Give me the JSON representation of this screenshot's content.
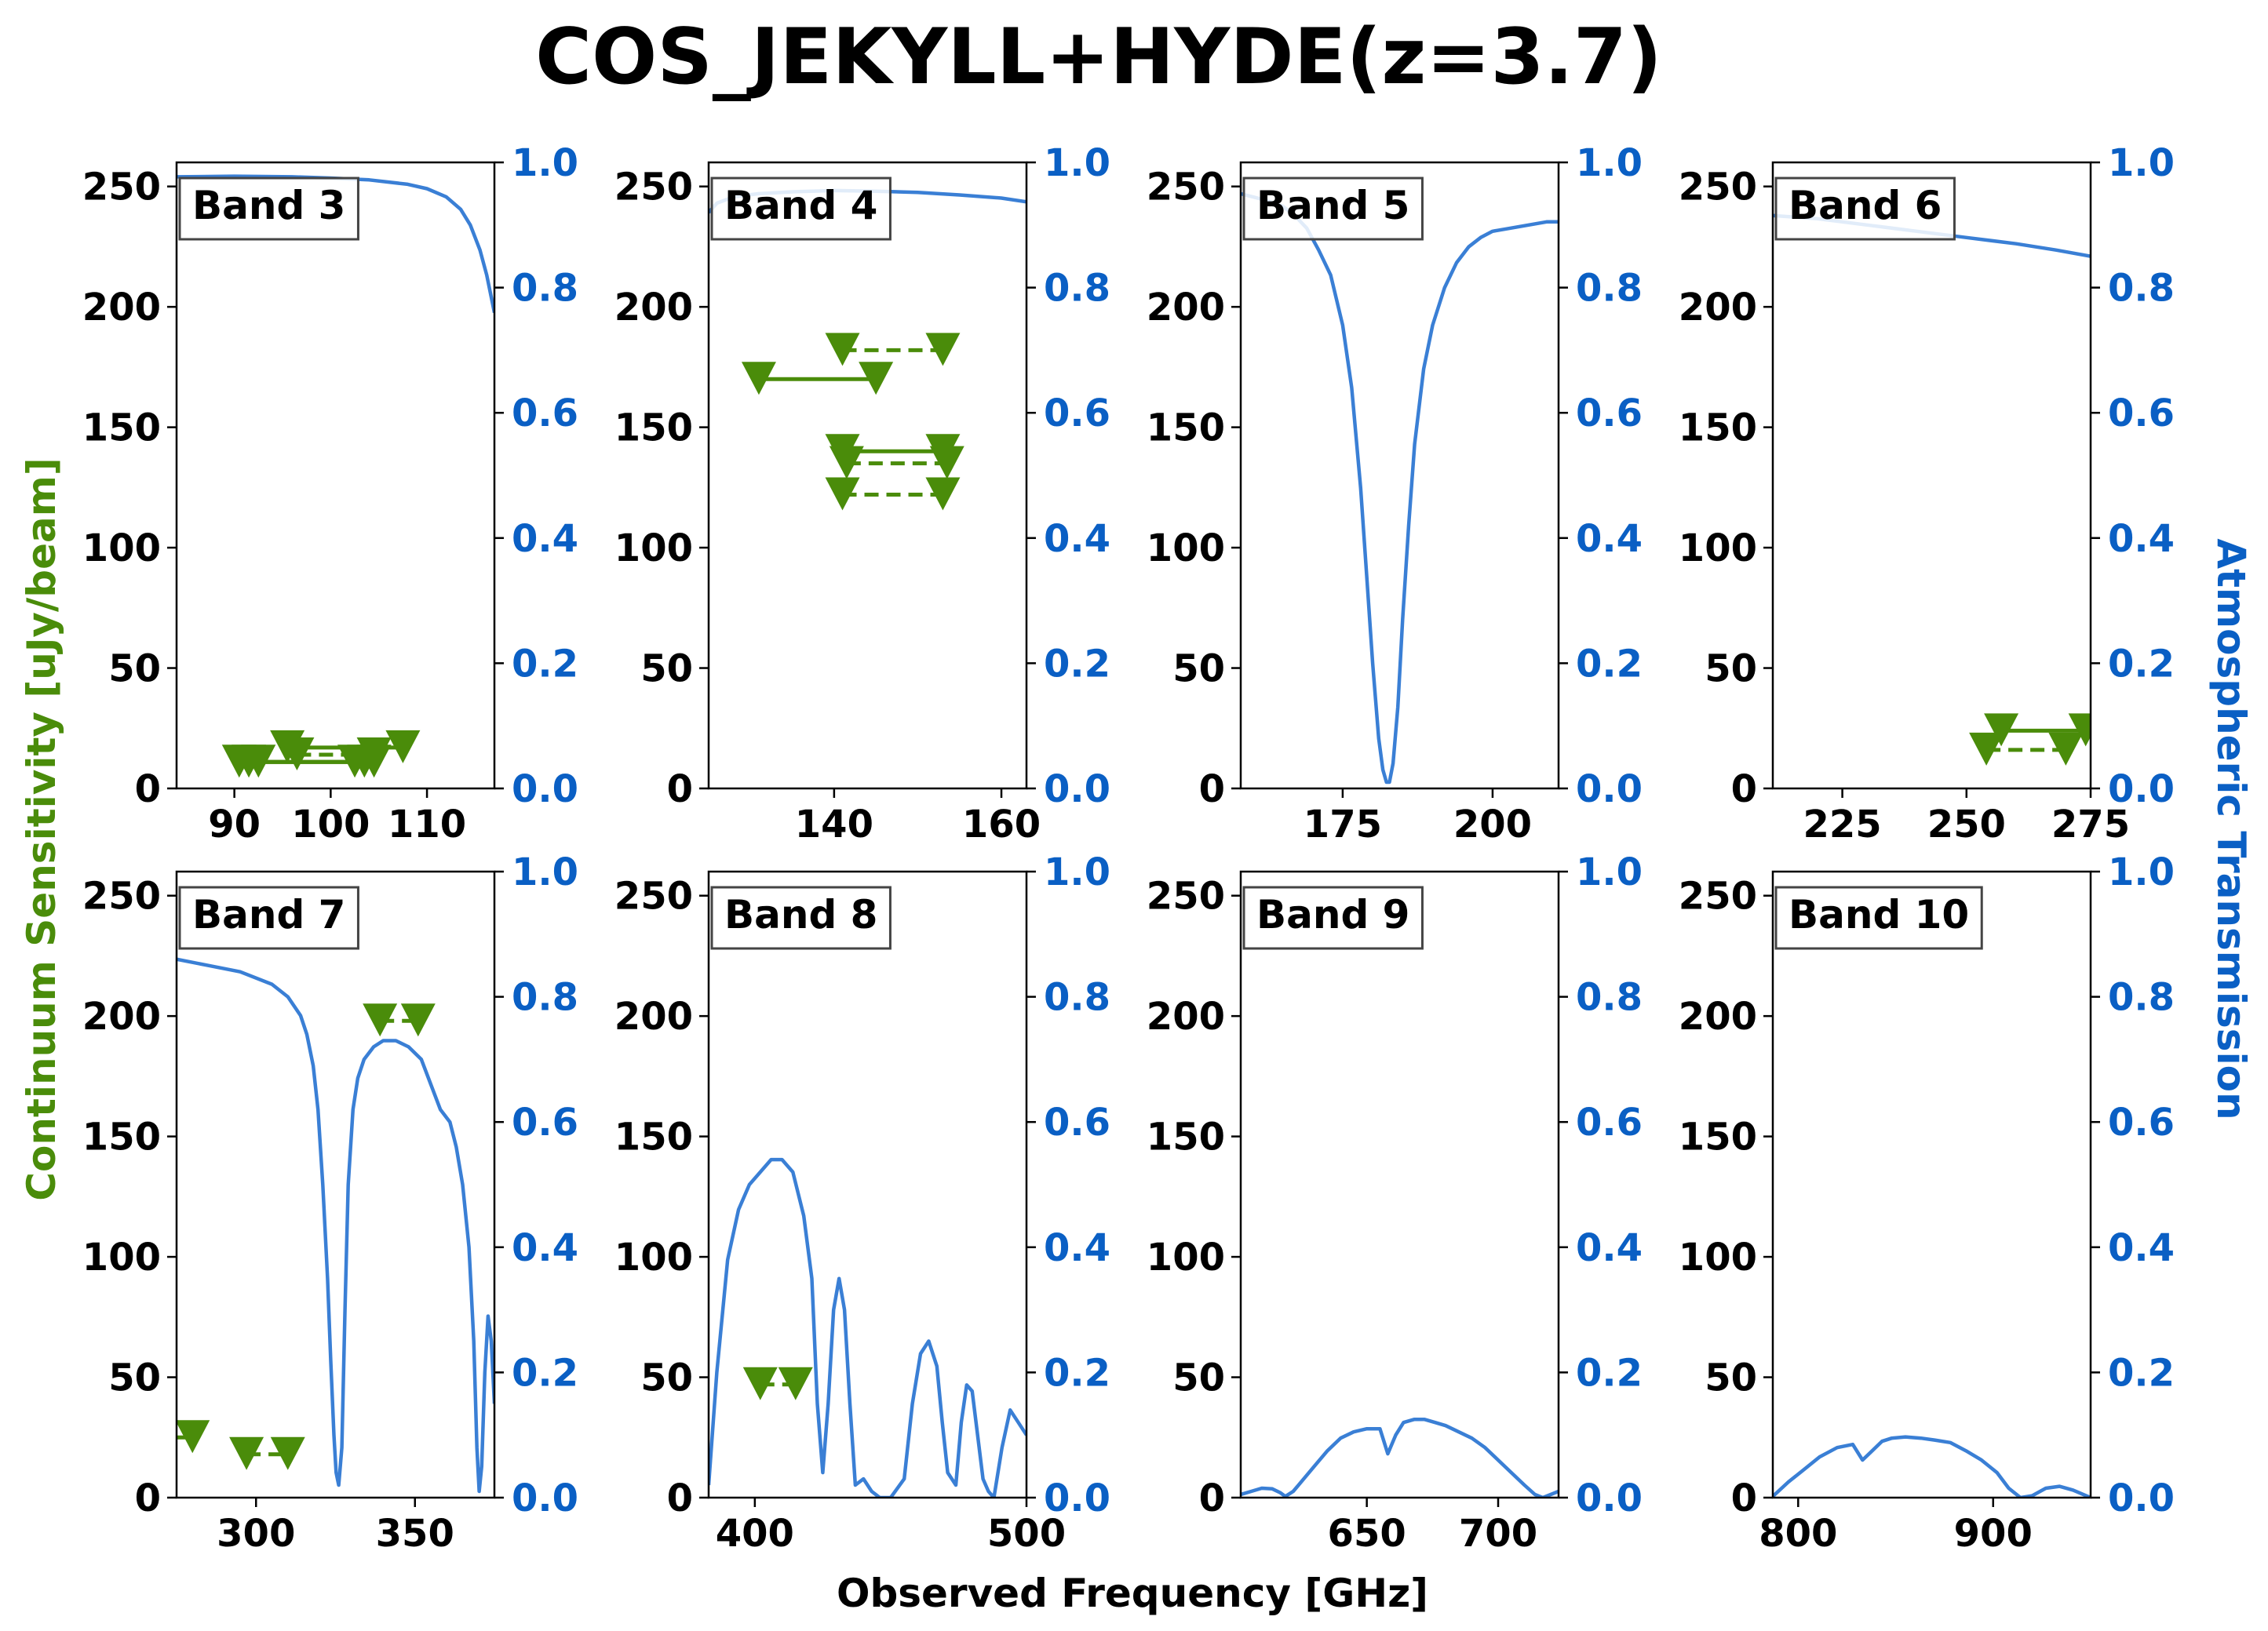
{
  "figure": {
    "title": "COS_JEKYLL+HYDE(z=3.7)",
    "xlabel": "Observed Frequency [GHz]",
    "ylabel_left": "Continuum Sensitivity [uJy/beam]",
    "ylabel_right": "Atmospheric Transmission"
  },
  "colors": {
    "sensitivity": "#4a8c0a",
    "transmission": "#3a7fd5",
    "right_axis": "#0a5fc4"
  },
  "chart_data": [
    {
      "type": "line",
      "band": "Band 3",
      "xlim": [
        84,
        117
      ],
      "ylim": [
        0,
        260
      ],
      "y2lim": [
        0,
        1
      ],
      "xticks": [
        90,
        100,
        110
      ],
      "yticks": [
        0,
        50,
        100,
        150,
        200,
        250
      ],
      "y2ticks": [
        "0.0",
        "0.2",
        "0.4",
        "0.6",
        "0.8",
        "1.0"
      ],
      "sensitivity_limits": [
        {
          "x": [
            90.5,
            102.5
          ],
          "y": [
            11,
            11
          ],
          "style": "solid"
        },
        {
          "x": [
            91.5,
            103.5
          ],
          "y": [
            11,
            11
          ],
          "style": "solid"
        },
        {
          "x": [
            92.5,
            104.5
          ],
          "y": [
            11,
            11
          ],
          "style": "solid"
        },
        {
          "x": [
            95.5,
            107.5
          ],
          "y": [
            17,
            17
          ],
          "style": "solid"
        },
        {
          "x": [
            96.5,
            104.5
          ],
          "y": [
            14,
            14
          ],
          "style": "dashed"
        }
      ],
      "transmission": {
        "x": [
          84,
          90,
          96,
          100,
          104,
          108,
          110,
          112,
          113.5,
          114.5,
          115.5,
          116.2,
          117
        ],
        "y": [
          0.977,
          0.978,
          0.977,
          0.975,
          0.972,
          0.965,
          0.958,
          0.945,
          0.925,
          0.9,
          0.86,
          0.82,
          0.76
        ]
      }
    },
    {
      "type": "line",
      "band": "Band 4",
      "xlim": [
        125,
        163
      ],
      "ylim": [
        0,
        260
      ],
      "y2lim": [
        0,
        1
      ],
      "xticks": [
        140,
        160
      ],
      "yticks": [
        0,
        50,
        100,
        150,
        200,
        250
      ],
      "y2ticks": [
        "0.0",
        "0.2",
        "0.4",
        "0.6",
        "0.8",
        "1.0"
      ],
      "sensitivity_limits": [
        {
          "x": [
            131,
            145
          ],
          "y": [
            170,
            170
          ],
          "style": "solid"
        },
        {
          "x": [
            141,
            153
          ],
          "y": [
            182,
            182
          ],
          "style": "dashed"
        },
        {
          "x": [
            141,
            153
          ],
          "y": [
            140,
            140
          ],
          "style": "solid"
        },
        {
          "x": [
            141.5,
            153.5
          ],
          "y": [
            135,
            135
          ],
          "style": "dashed"
        },
        {
          "x": [
            141,
            153
          ],
          "y": [
            122,
            122
          ],
          "style": "dashed"
        }
      ],
      "transmission": {
        "x": [
          125,
          126,
          128,
          131,
          135,
          140,
          145,
          150,
          155,
          160,
          163
        ],
        "y": [
          0.92,
          0.935,
          0.945,
          0.95,
          0.953,
          0.955,
          0.954,
          0.952,
          0.948,
          0.943,
          0.937
        ]
      }
    },
    {
      "type": "line",
      "band": "Band 5",
      "xlim": [
        158,
        211
      ],
      "ylim": [
        0,
        260
      ],
      "y2lim": [
        0,
        1
      ],
      "xticks": [
        175,
        200
      ],
      "yticks": [
        0,
        50,
        100,
        150,
        200,
        250
      ],
      "y2ticks": [
        "0.0",
        "0.2",
        "0.4",
        "0.6",
        "0.8",
        "1.0"
      ],
      "sensitivity_limits": [],
      "transmission": {
        "x": [
          158,
          162,
          165,
          167,
          169,
          171,
          173,
          175,
          176.5,
          178,
          179,
          180,
          181,
          181.7,
          182.3,
          182.8,
          183.4,
          184.2,
          185,
          186,
          187,
          188.5,
          190,
          192,
          194,
          196,
          198,
          200,
          203,
          206,
          209,
          211
        ],
        "y": [
          0.95,
          0.94,
          0.93,
          0.915,
          0.895,
          0.86,
          0.82,
          0.74,
          0.64,
          0.48,
          0.34,
          0.2,
          0.08,
          0.03,
          0.01,
          0.01,
          0.04,
          0.13,
          0.27,
          0.42,
          0.55,
          0.67,
          0.74,
          0.8,
          0.84,
          0.865,
          0.88,
          0.89,
          0.895,
          0.9,
          0.905,
          0.905
        ]
      }
    },
    {
      "type": "line",
      "band": "Band 6",
      "xlim": [
        211,
        275
      ],
      "ylim": [
        0,
        260
      ],
      "y2lim": [
        0,
        1
      ],
      "xticks": [
        225,
        250,
        275
      ],
      "yticks": [
        0,
        50,
        100,
        150,
        200,
        250
      ],
      "y2ticks": [
        "0.0",
        "0.2",
        "0.4",
        "0.6",
        "0.8",
        "1.0"
      ],
      "sensitivity_limits": [
        {
          "x": [
            257,
            274
          ],
          "y": [
            24,
            24
          ],
          "style": "solid"
        },
        {
          "x": [
            254,
            270
          ],
          "y": [
            16,
            16
          ],
          "style": "dashed"
        }
      ],
      "transmission": {
        "x": [
          211,
          220,
          230,
          240,
          250,
          260,
          268,
          275
        ],
        "y": [
          0.915,
          0.91,
          0.9,
          0.89,
          0.88,
          0.87,
          0.86,
          0.85
        ]
      }
    },
    {
      "type": "line",
      "band": "Band 7",
      "xlim": [
        275,
        375
      ],
      "ylim": [
        0,
        260
      ],
      "y2lim": [
        0,
        1
      ],
      "xticks": [
        300,
        350
      ],
      "yticks": [
        0,
        50,
        100,
        150,
        200,
        250
      ],
      "y2ticks": [
        "0.0",
        "0.2",
        "0.4",
        "0.6",
        "0.8",
        "1.0"
      ],
      "sensitivity_limits": [
        {
          "x": [
            270,
            280
          ],
          "y": [
            25,
            25
          ],
          "style": "solid"
        },
        {
          "x": [
            297,
            310
          ],
          "y": [
            18,
            18
          ],
          "style": "dashed"
        },
        {
          "x": [
            339,
            351
          ],
          "y": [
            198,
            198
          ],
          "style": "dashed"
        }
      ],
      "transmission": {
        "x": [
          275,
          285,
          295,
          305,
          310,
          314,
          316,
          318,
          319.5,
          321,
          322.5,
          323.5,
          324.5,
          325.2,
          326,
          327,
          328,
          329,
          330.5,
          332,
          334,
          337,
          340,
          344,
          348,
          352,
          355,
          358,
          361,
          363,
          365,
          367,
          368.5,
          369.5,
          370.2,
          371,
          372,
          373,
          374,
          375
        ],
        "y": [
          0.86,
          0.85,
          0.84,
          0.82,
          0.8,
          0.77,
          0.74,
          0.69,
          0.62,
          0.5,
          0.35,
          0.22,
          0.1,
          0.04,
          0.02,
          0.08,
          0.3,
          0.5,
          0.62,
          0.67,
          0.7,
          0.72,
          0.73,
          0.73,
          0.72,
          0.7,
          0.66,
          0.62,
          0.6,
          0.56,
          0.5,
          0.4,
          0.25,
          0.08,
          0.01,
          0.05,
          0.2,
          0.29,
          0.25,
          0.15
        ]
      }
    },
    {
      "type": "line",
      "band": "Band 8",
      "xlim": [
        383,
        500
      ],
      "ylim": [
        0,
        260
      ],
      "y2lim": [
        0,
        1
      ],
      "xticks": [
        400,
        500
      ],
      "yticks": [
        0,
        50,
        100,
        150,
        200,
        250
      ],
      "y2ticks": [
        "0.0",
        "0.2",
        "0.4",
        "0.6",
        "0.8",
        "1.0"
      ],
      "sensitivity_limits": [
        {
          "x": [
            402,
            415
          ],
          "y": [
            47,
            47
          ],
          "style": "dashed"
        }
      ],
      "transmission": {
        "x": [
          383,
          386,
          390,
          394,
          398,
          402,
          406,
          410,
          414,
          418,
          421,
          423,
          425,
          427,
          429,
          431,
          433,
          435,
          437,
          440,
          443,
          446,
          450,
          455,
          458,
          461,
          464,
          467,
          469,
          471,
          474,
          476,
          478,
          480,
          482,
          484,
          486,
          488,
          491,
          494,
          497,
          500
        ],
        "y": [
          0.02,
          0.2,
          0.38,
          0.46,
          0.5,
          0.52,
          0.54,
          0.54,
          0.52,
          0.45,
          0.35,
          0.15,
          0.04,
          0.15,
          0.3,
          0.35,
          0.3,
          0.15,
          0.02,
          0.03,
          0.01,
          0.0,
          0.0,
          0.03,
          0.15,
          0.23,
          0.25,
          0.21,
          0.12,
          0.04,
          0.02,
          0.12,
          0.18,
          0.17,
          0.1,
          0.03,
          0.01,
          0.0,
          0.08,
          0.14,
          0.12,
          0.1
        ]
      }
    },
    {
      "type": "line",
      "band": "Band 9",
      "xlim": [
        602,
        723
      ],
      "ylim": [
        0,
        260
      ],
      "y2lim": [
        0,
        1
      ],
      "xticks": [
        650,
        700
      ],
      "yticks": [
        0,
        50,
        100,
        150,
        200,
        250
      ],
      "y2ticks": [
        "0.0",
        "0.2",
        "0.4",
        "0.6",
        "0.8",
        "1.0"
      ],
      "sensitivity_limits": [],
      "transmission": {
        "x": [
          602,
          606,
          610,
          614,
          617,
          619,
          622,
          626,
          630,
          635,
          640,
          645,
          650,
          655,
          658,
          661,
          664,
          668,
          672,
          676,
          680,
          685,
          690,
          695,
          700,
          705,
          710,
          714,
          717,
          720,
          723
        ],
        "y": [
          0.005,
          0.01,
          0.015,
          0.014,
          0.008,
          0.002,
          0.01,
          0.03,
          0.05,
          0.075,
          0.095,
          0.105,
          0.11,
          0.11,
          0.07,
          0.1,
          0.12,
          0.125,
          0.125,
          0.12,
          0.115,
          0.105,
          0.095,
          0.08,
          0.06,
          0.04,
          0.02,
          0.005,
          0.0,
          0.005,
          0.01
        ]
      }
    },
    {
      "type": "line",
      "band": "Band 10",
      "xlim": [
        787,
        950
      ],
      "ylim": [
        0,
        260
      ],
      "y2lim": [
        0,
        1
      ],
      "xticks": [
        800,
        900
      ],
      "yticks": [
        0,
        50,
        100,
        150,
        200,
        250
      ],
      "y2ticks": [
        "0.0",
        "0.2",
        "0.4",
        "0.6",
        "0.8",
        "1.0"
      ],
      "sensitivity_limits": [],
      "transmission": {
        "x": [
          787,
          795,
          803,
          811,
          820,
          828,
          833,
          838,
          843,
          848,
          855,
          863,
          870,
          878,
          886,
          894,
          902,
          908,
          914,
          920,
          927,
          934,
          941,
          950
        ],
        "y": [
          0.002,
          0.025,
          0.045,
          0.065,
          0.08,
          0.085,
          0.06,
          0.075,
          0.09,
          0.095,
          0.097,
          0.095,
          0.092,
          0.088,
          0.075,
          0.06,
          0.04,
          0.015,
          0.0,
          0.003,
          0.015,
          0.018,
          0.012,
          0.0
        ]
      }
    }
  ]
}
